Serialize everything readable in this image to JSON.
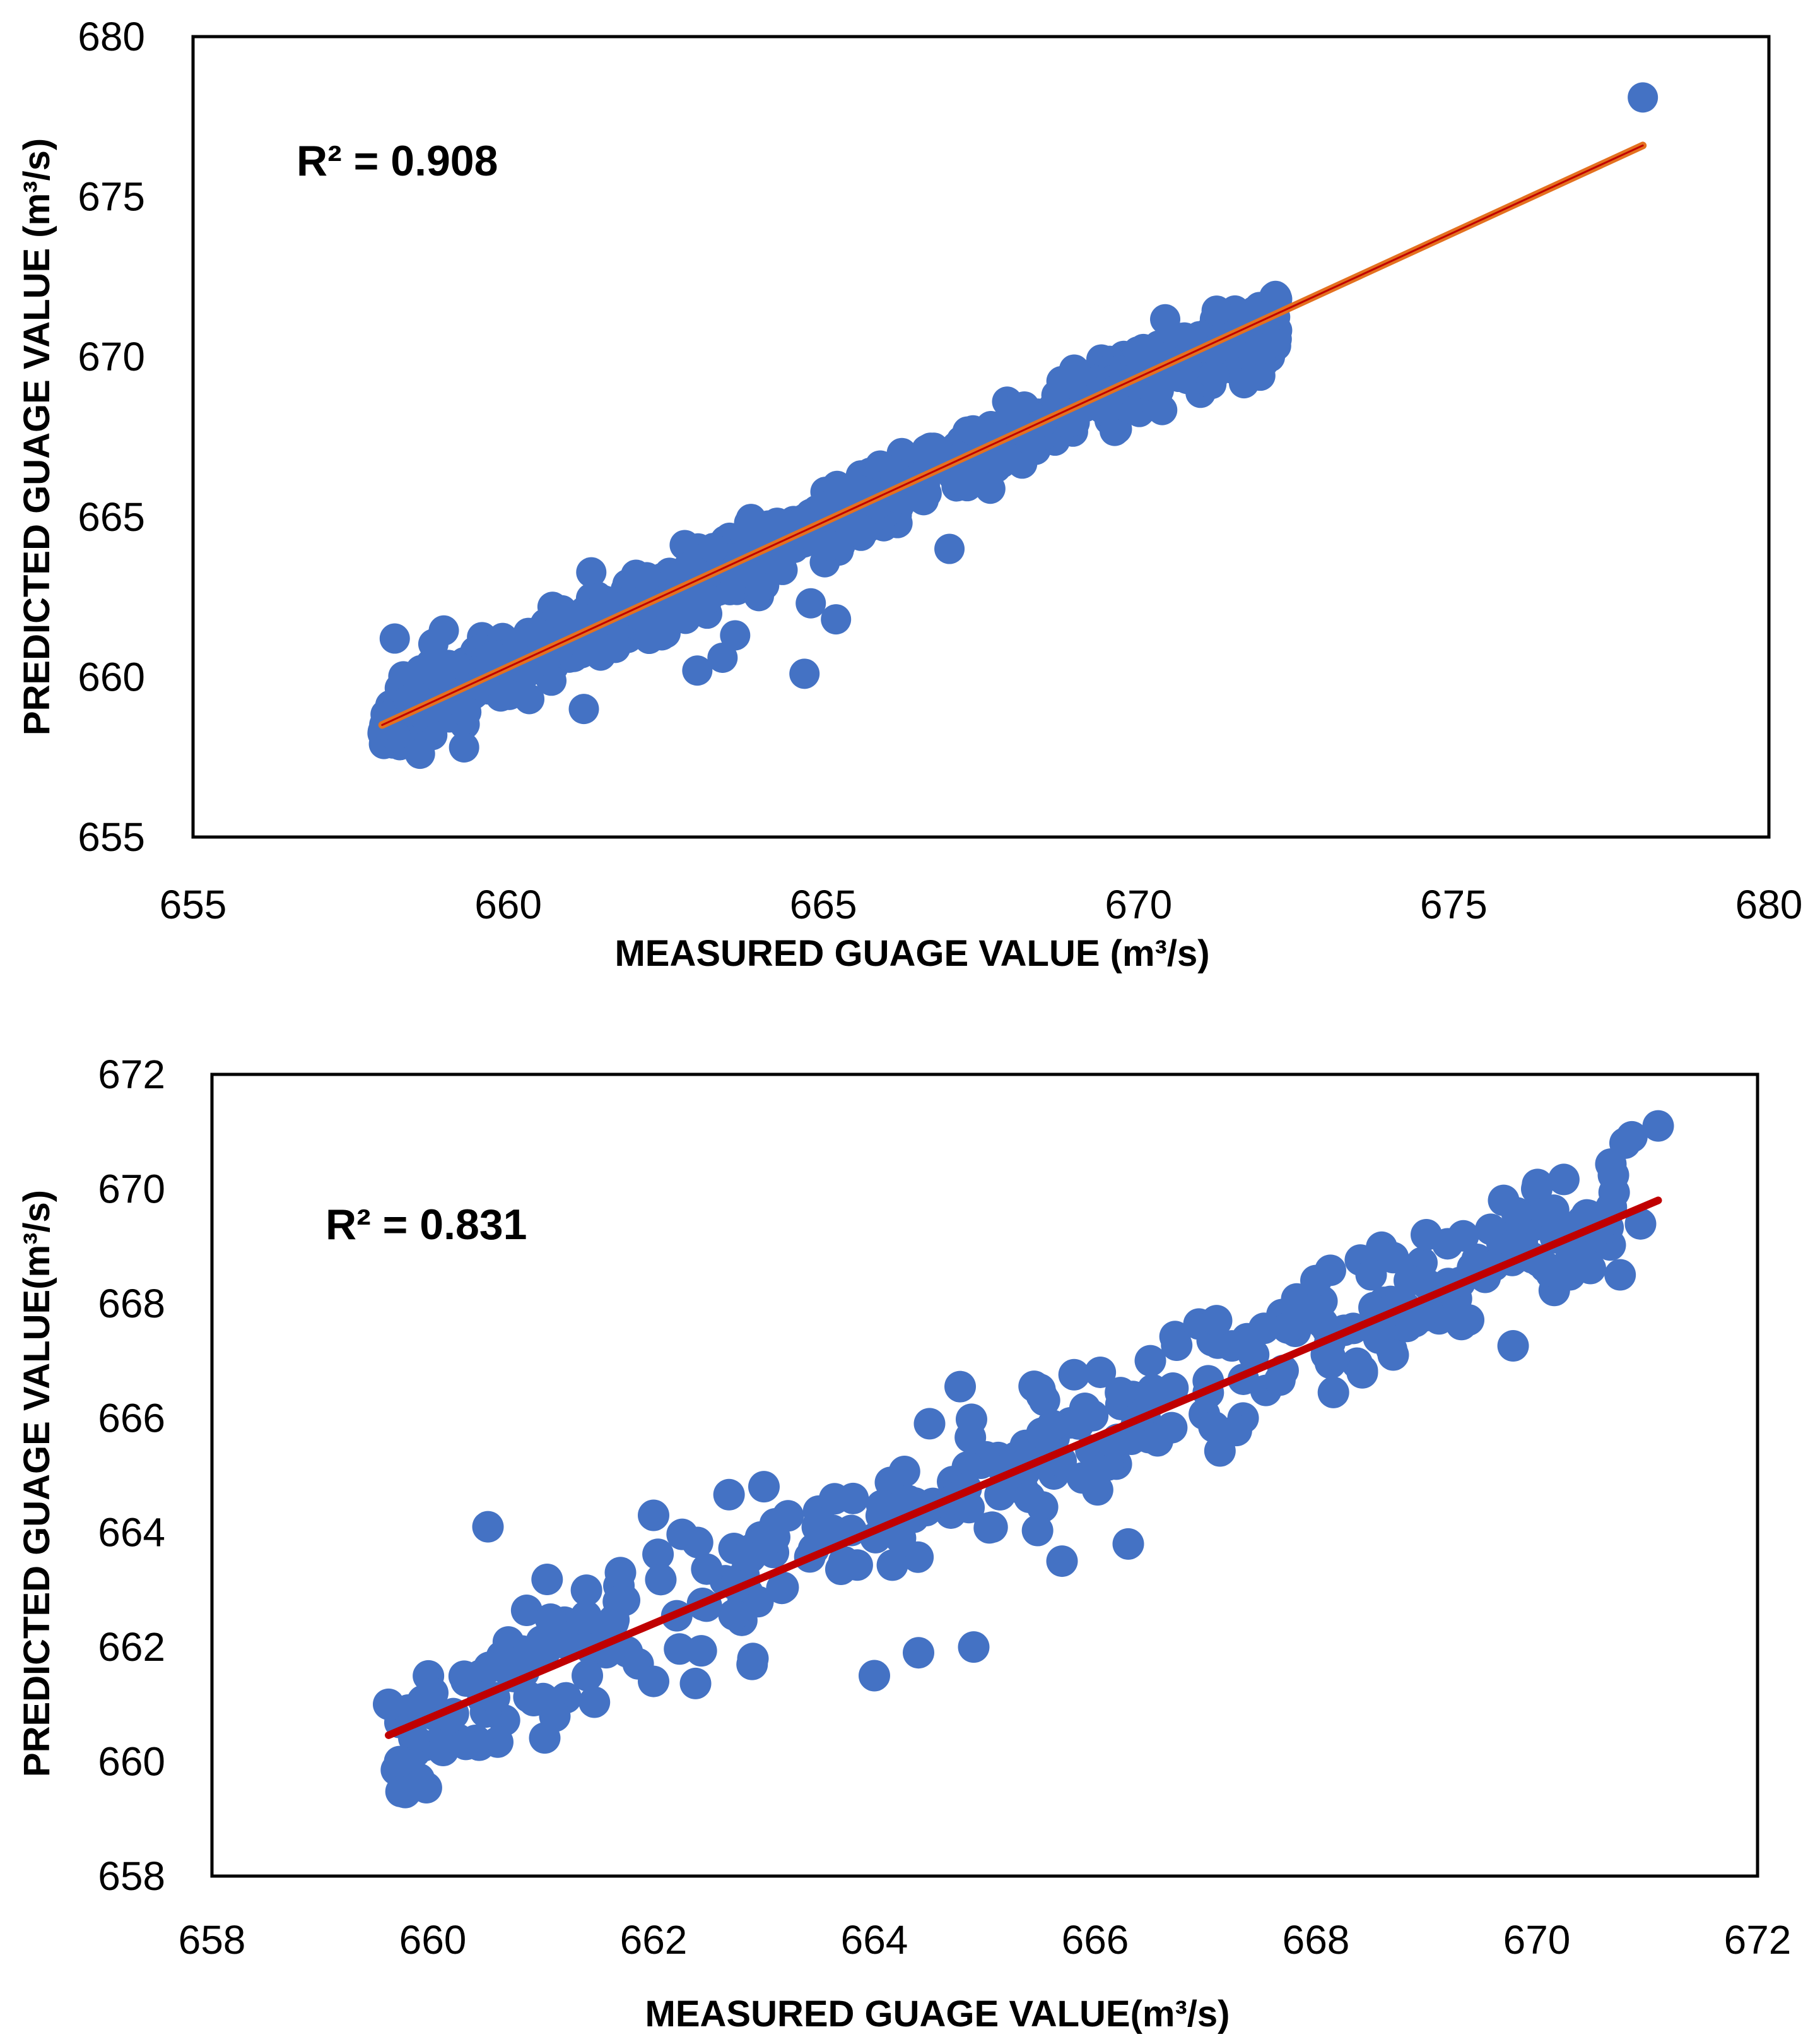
{
  "chart_data": [
    {
      "type": "scatter",
      "xlabel": "MEASURED GUAGE VALUE (m³/s)",
      "ylabel": "PREDICTED GUAGE VALUE (m³/s)",
      "annotation": "R² = 0.908",
      "xlim": [
        655,
        680
      ],
      "ylim": [
        655,
        680
      ],
      "xticks": [
        "655",
        "660",
        "665",
        "670",
        "675",
        "680"
      ],
      "yticks": [
        "655",
        "660",
        "665",
        "670",
        "675",
        "680"
      ],
      "grid": false,
      "series": [
        {
          "name": "points",
          "color": "#4472C4",
          "seed": 11,
          "n": 900,
          "x_range": [
            658.0,
            672.2
          ],
          "slope": 0.885,
          "intercept": 76.3,
          "noise": 0.55,
          "outliers": [
            [
              678.0,
              678.1
            ],
            [
              664.7,
              660.1
            ],
            [
              663.0,
              660.2
            ],
            [
              658.6,
              657.6
            ],
            [
              659.3,
              657.8
            ],
            [
              661.2,
              659.0
            ],
            [
              665.2,
              661.8
            ],
            [
              664.8,
              662.3
            ],
            [
              667.0,
              664.0
            ],
            [
              669.5,
              668.5
            ],
            [
              671.2,
              670.2
            ],
            [
              663.4,
              660.6
            ],
            [
              658.2,
              661.2
            ],
            [
              663.6,
              661.3
            ]
          ]
        }
      ],
      "trendline": {
        "x": [
          658.0,
          678.0
        ],
        "y": [
          658.5,
          676.6
        ],
        "color": "#E4711F",
        "inner_color": "#C00000"
      }
    },
    {
      "type": "scatter",
      "xlabel": "MEASURED GUAGE VALUE(m³/s)",
      "ylabel": "PREDICTED GUAGE VALUE(m³/s)",
      "annotation": "R² = 0.831",
      "xlim": [
        658,
        672
      ],
      "ylim": [
        658,
        672
      ],
      "xticks": [
        "658",
        "660",
        "662",
        "664",
        "666",
        "668",
        "670",
        "672"
      ],
      "yticks": [
        "658",
        "660",
        "662",
        "664",
        "666",
        "668",
        "670",
        "672"
      ],
      "grid": false,
      "series": [
        {
          "name": "points",
          "color": "#4472C4",
          "seed": 29,
          "n": 320,
          "x_range": [
            659.6,
            671.1
          ],
          "slope": 0.81,
          "intercept": 126.3,
          "noise": 0.6,
          "outliers": [
            [
              659.6,
              661.0
            ],
            [
              659.7,
              660.0
            ],
            [
              660.5,
              664.1
            ],
            [
              661.0,
              661.1
            ],
            [
              661.4,
              661.5
            ],
            [
              662.0,
              661.4
            ],
            [
              662.0,
              664.3
            ],
            [
              664.0,
              661.5
            ],
            [
              664.4,
              661.9
            ],
            [
              664.9,
              662.0
            ],
            [
              665.7,
              663.5
            ],
            [
              666.3,
              663.8
            ],
            [
              667.1,
              667.7
            ],
            [
              668.0,
              668.4
            ],
            [
              668.7,
              667.1
            ],
            [
              669.2,
              668.3
            ],
            [
              669.7,
              669.8
            ],
            [
              670.0,
              670.0
            ],
            [
              670.1,
              669.6
            ],
            [
              670.3,
              668.5
            ],
            [
              670.8,
              670.8
            ],
            [
              671.1,
              671.1
            ],
            [
              669.0,
              669.2
            ],
            [
              668.5,
              668.5
            ],
            [
              668.7,
              668.8
            ],
            [
              666.5,
              667.0
            ],
            [
              663.0,
              664.8
            ],
            [
              664.5,
              665.9
            ],
            [
              665.5,
              666.5
            ],
            [
              660.3,
              660.3
            ],
            [
              660.0,
              661.2
            ],
            [
              661.7,
              663.3
            ],
            [
              662.9,
              661.8
            ]
          ]
        }
      ],
      "trendline": {
        "x": [
          659.6,
          671.1
        ],
        "y": [
          660.46,
          669.8
        ],
        "color": "#C00000"
      }
    }
  ]
}
